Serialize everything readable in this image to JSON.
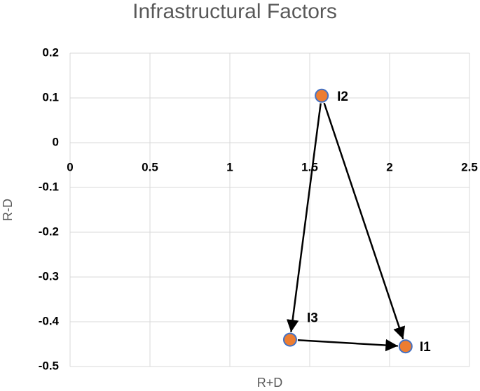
{
  "chart_data": {
    "type": "scatter",
    "title": "Infrastructural Factors",
    "x_label": "R+D",
    "y_label": "R-D",
    "series": [
      {
        "name": null,
        "color": "#ED7D31",
        "labels": [
          "I1",
          "I2",
          "I3"
        ],
        "x": [
          2.1,
          1.575,
          1.377
        ],
        "values": [
          -0.455,
          0.105,
          -0.44
        ]
      }
    ],
    "xlim": [
      0,
      2.5
    ],
    "xticks": [
      0,
      0.5,
      1,
      1.5,
      2,
      2.5
    ],
    "ylim": [
      -0.5,
      0.2
    ],
    "yticks": [
      -0.5,
      -0.4,
      -0.3,
      -0.2,
      -0.1,
      0,
      0.1,
      0.2
    ],
    "grid": true
  }
}
